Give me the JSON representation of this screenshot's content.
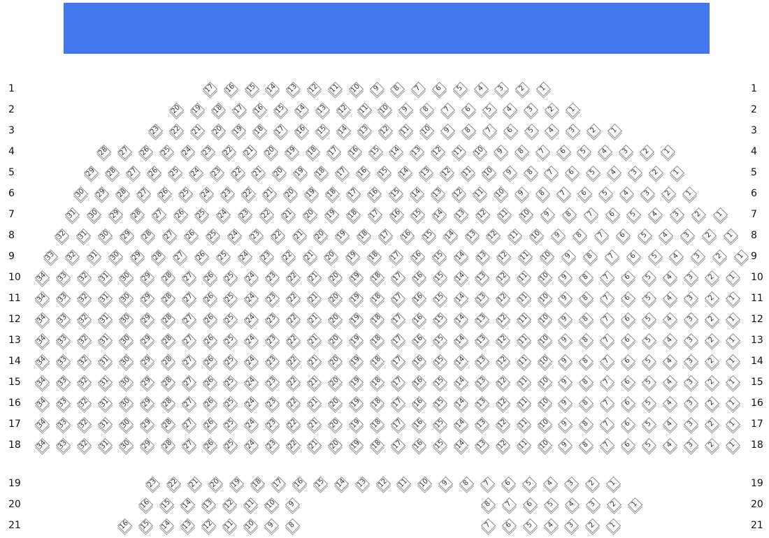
{
  "stage": {
    "color": "#4477ee"
  },
  "rows": [
    {
      "label": "1",
      "sections": [
        [
          17,
          16,
          15,
          14,
          13,
          12,
          11,
          10,
          9,
          8,
          7,
          6,
          5,
          4,
          3,
          2,
          1
        ]
      ]
    },
    {
      "label": "2",
      "sections": [
        [
          20,
          19,
          18,
          17,
          16,
          15,
          14,
          13,
          12,
          11,
          10,
          9,
          8,
          7,
          6,
          5,
          4,
          3,
          2,
          1
        ]
      ]
    },
    {
      "label": "3",
      "sections": [
        [
          23,
          22,
          21,
          20,
          19,
          18,
          17,
          16,
          15,
          14,
          13,
          12,
          11,
          10,
          9,
          8,
          7,
          6,
          5,
          4,
          3,
          2,
          1
        ]
      ]
    },
    {
      "label": "4",
      "sections": [
        [
          28,
          27,
          26,
          25,
          24,
          23,
          22,
          21,
          20,
          19,
          18,
          17,
          16,
          15,
          14,
          13,
          12,
          11,
          10,
          9,
          8,
          7,
          6,
          5,
          4,
          3,
          2,
          1
        ]
      ]
    },
    {
      "label": "5",
      "sections": [
        [
          29,
          28,
          27,
          26,
          25,
          24,
          23,
          22,
          21,
          20,
          19,
          18,
          17,
          16,
          15,
          14,
          13,
          12,
          11,
          10,
          9,
          8,
          7,
          6,
          5,
          4,
          3,
          2,
          1
        ]
      ]
    },
    {
      "label": "6",
      "sections": [
        [
          30,
          29,
          28,
          27,
          26,
          25,
          24,
          23,
          22,
          21,
          20,
          19,
          18,
          17,
          16,
          15,
          14,
          13,
          12,
          11,
          10,
          9,
          8,
          7,
          6,
          5,
          4,
          3,
          2,
          1
        ]
      ]
    },
    {
      "label": "7",
      "sections": [
        [
          31,
          30,
          29,
          28,
          27,
          26,
          25,
          24,
          23,
          22,
          21,
          20,
          19,
          18,
          17,
          16,
          15,
          14,
          13,
          12,
          11,
          10,
          9,
          8,
          7,
          6,
          5,
          4,
          3,
          2,
          1
        ]
      ]
    },
    {
      "label": "8",
      "sections": [
        [
          32,
          31,
          30,
          29,
          28,
          27,
          26,
          25,
          24,
          23,
          22,
          21,
          20,
          19,
          18,
          17,
          16,
          15,
          14,
          13,
          12,
          11,
          10,
          9,
          8,
          7,
          6,
          5,
          4,
          3,
          2,
          1
        ]
      ]
    },
    {
      "label": "9",
      "sections": [
        [
          33,
          32,
          31,
          30,
          29,
          28,
          27,
          26,
          25,
          24,
          23,
          22,
          21,
          20,
          19,
          18,
          17,
          16,
          15,
          14,
          13,
          12,
          11,
          10,
          9,
          8,
          7,
          6,
          5,
          4,
          3,
          2,
          1
        ]
      ]
    },
    {
      "label": "10",
      "sections": [
        [
          34,
          33,
          32,
          31,
          30,
          29,
          28,
          27,
          26,
          25,
          24,
          23,
          22,
          21,
          20,
          19,
          18,
          17,
          16,
          15,
          14,
          13,
          12,
          11,
          10,
          9,
          8,
          7,
          6,
          5,
          4,
          3,
          2,
          1
        ]
      ]
    },
    {
      "label": "11",
      "sections": [
        [
          34,
          33,
          32,
          31,
          30,
          29,
          28,
          27,
          26,
          25,
          24,
          23,
          22,
          21,
          20,
          19,
          18,
          17,
          16,
          15,
          14,
          13,
          12,
          11,
          10,
          9,
          8,
          7,
          6,
          5,
          4,
          3,
          2,
          1
        ]
      ]
    },
    {
      "label": "12",
      "sections": [
        [
          34,
          33,
          32,
          31,
          30,
          29,
          28,
          27,
          26,
          25,
          24,
          23,
          22,
          21,
          20,
          19,
          18,
          17,
          16,
          15,
          14,
          13,
          12,
          11,
          10,
          9,
          8,
          7,
          6,
          5,
          4,
          3,
          2,
          1
        ]
      ]
    },
    {
      "label": "13",
      "sections": [
        [
          34,
          33,
          32,
          31,
          30,
          29,
          28,
          27,
          26,
          25,
          24,
          23,
          22,
          21,
          20,
          19,
          18,
          17,
          16,
          15,
          14,
          13,
          12,
          11,
          10,
          9,
          8,
          7,
          6,
          5,
          4,
          3,
          2,
          1
        ]
      ]
    },
    {
      "label": "14",
      "sections": [
        [
          34,
          33,
          32,
          31,
          30,
          29,
          28,
          27,
          26,
          25,
          24,
          23,
          22,
          21,
          20,
          19,
          18,
          17,
          16,
          15,
          14,
          13,
          12,
          11,
          10,
          9,
          8,
          7,
          6,
          5,
          4,
          3,
          2,
          1
        ]
      ]
    },
    {
      "label": "15",
      "sections": [
        [
          34,
          33,
          32,
          31,
          30,
          29,
          28,
          27,
          26,
          25,
          24,
          23,
          22,
          21,
          20,
          19,
          18,
          17,
          16,
          15,
          14,
          13,
          12,
          11,
          10,
          9,
          8,
          7,
          6,
          5,
          4,
          3,
          2,
          1
        ]
      ]
    },
    {
      "label": "16",
      "sections": [
        [
          34,
          33,
          32,
          31,
          30,
          29,
          28,
          27,
          26,
          25,
          24,
          23,
          22,
          21,
          20,
          19,
          18,
          17,
          16,
          15,
          14,
          13,
          12,
          11,
          10,
          9,
          8,
          7,
          6,
          5,
          4,
          3,
          2,
          1
        ]
      ]
    },
    {
      "label": "17",
      "sections": [
        [
          34,
          33,
          32,
          31,
          30,
          29,
          28,
          27,
          26,
          25,
          24,
          23,
          22,
          21,
          20,
          19,
          18,
          17,
          16,
          15,
          14,
          13,
          12,
          11,
          10,
          9,
          8,
          7,
          6,
          5,
          4,
          3,
          2,
          1
        ]
      ]
    },
    {
      "label": "18",
      "sections": [
        [
          34,
          33,
          32,
          31,
          30,
          29,
          28,
          27,
          26,
          25,
          24,
          23,
          22,
          21,
          20,
          19,
          18,
          17,
          16,
          15,
          14,
          13,
          12,
          11,
          10,
          9,
          8,
          7,
          6,
          5,
          4,
          3,
          2,
          1
        ]
      ]
    },
    {
      "label": "19",
      "sections": [
        [
          23,
          22,
          21,
          20,
          19,
          18,
          17,
          16,
          15,
          14,
          13,
          12,
          11,
          10,
          9,
          8,
          7,
          6,
          5,
          4,
          3,
          2,
          1
        ]
      ]
    },
    {
      "label": "20",
      "sections": [
        [
          16,
          15,
          14,
          13,
          12,
          11,
          10,
          9
        ],
        [
          8,
          7,
          6,
          5,
          4,
          3,
          2,
          1
        ]
      ]
    },
    {
      "label": "21",
      "sections": [
        [
          16,
          15,
          14,
          13,
          12,
          11,
          10,
          9,
          8
        ],
        [
          7,
          6,
          5,
          4,
          3,
          2,
          1
        ]
      ]
    }
  ]
}
